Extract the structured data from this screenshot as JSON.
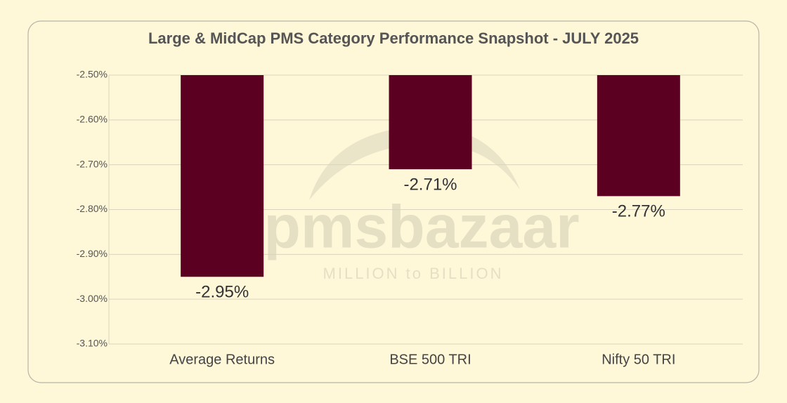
{
  "chart_data": {
    "type": "bar",
    "title": "Large & MidCap PMS Category Performance Snapshot - JULY 2025",
    "categories": [
      "Average Returns",
      "BSE 500 TRI",
      "Nifty 50 TRI"
    ],
    "values": [
      -2.95,
      -2.71,
      -2.77
    ],
    "value_labels": [
      "-2.95%",
      "-2.71%",
      "-2.77%"
    ],
    "color": "#5c0022",
    "ylim": [
      -3.1,
      -2.5
    ],
    "yticks": [
      {
        "value": -2.5,
        "label": "-2.50%"
      },
      {
        "value": -2.6,
        "label": "-2.60%"
      },
      {
        "value": -2.7,
        "label": "-2.70%"
      },
      {
        "value": -2.8,
        "label": "-2.80%"
      },
      {
        "value": -2.9,
        "label": "-2.90%"
      },
      {
        "value": -3.0,
        "label": "-3.00%"
      },
      {
        "value": -3.1,
        "label": "-3.10%"
      }
    ],
    "grid": true
  },
  "watermark": {
    "brand": "pmsbazaar",
    "tagline": "MILLION to BILLION"
  }
}
